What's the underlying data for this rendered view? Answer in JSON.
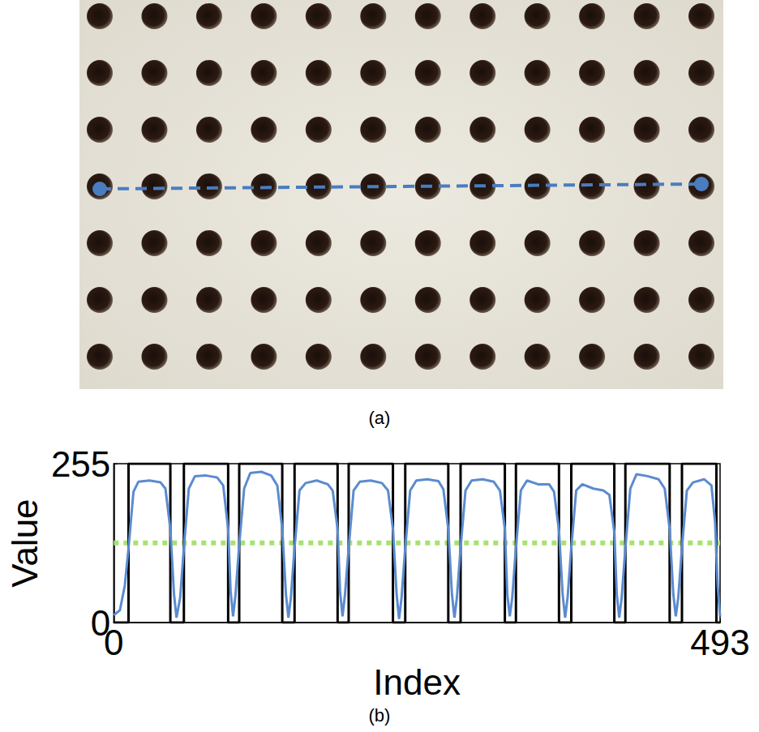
{
  "panel_a": {
    "caption": "(a)"
  },
  "chart_data": {
    "type": "line",
    "caption": "(b)",
    "x_label": "Index",
    "y_label": "Value",
    "xlim": [
      0,
      493
    ],
    "xticks": [
      0,
      493
    ],
    "ylim": [
      0,
      255
    ],
    "yticks": [
      0,
      255
    ],
    "grid": false,
    "series": [
      {
        "color": "#000000",
        "line_style": "solid",
        "x": [
          0,
          12,
          12,
          46,
          46,
          57,
          57,
          93,
          93,
          102,
          102,
          137,
          137,
          147,
          147,
          182,
          182,
          191,
          191,
          227,
          227,
          237,
          237,
          272,
          272,
          282,
          282,
          318,
          318,
          327,
          327,
          362,
          362,
          372,
          372,
          407,
          407,
          416,
          416,
          452,
          452,
          462,
          462,
          490,
          490,
          493
        ],
        "values": [
          0,
          0,
          255,
          255,
          0,
          0,
          255,
          255,
          0,
          0,
          255,
          255,
          0,
          0,
          255,
          255,
          0,
          0,
          255,
          255,
          0,
          0,
          255,
          255,
          0,
          0,
          255,
          255,
          0,
          0,
          255,
          255,
          0,
          0,
          255,
          255,
          0,
          0,
          255,
          255,
          0,
          0,
          255,
          255,
          0,
          0
        ]
      },
      {
        "color": "#5b8bd0",
        "line_style": "solid",
        "x": [
          0,
          5,
          9,
          12,
          16,
          20,
          29,
          38,
          42,
          46,
          49,
          51,
          54,
          57,
          61,
          66,
          75,
          84,
          89,
          93,
          95,
          97,
          99,
          102,
          106,
          111,
          120,
          128,
          133,
          137,
          140,
          142,
          144,
          147,
          151,
          156,
          165,
          174,
          178,
          182,
          184,
          186,
          188,
          191,
          195,
          200,
          209,
          218,
          223,
          227,
          230,
          232,
          234,
          237,
          241,
          246,
          255,
          264,
          268,
          272,
          275,
          277,
          279,
          282,
          286,
          291,
          300,
          309,
          314,
          318,
          320,
          322,
          324,
          327,
          331,
          336,
          345,
          354,
          358,
          362,
          365,
          367,
          369,
          372,
          376,
          381,
          390,
          398,
          403,
          407,
          409,
          411,
          413,
          416,
          420,
          425,
          434,
          443,
          448,
          452,
          455,
          457,
          459,
          462,
          466,
          471,
          480,
          486,
          489,
          491,
          493
        ],
        "values": [
          12,
          20,
          60,
          120,
          210,
          226,
          228,
          225,
          215,
          150,
          45,
          8,
          40,
          120,
          215,
          235,
          236,
          233,
          220,
          150,
          50,
          10,
          45,
          125,
          215,
          240,
          242,
          236,
          220,
          150,
          45,
          8,
          40,
          120,
          212,
          224,
          228,
          222,
          212,
          150,
          50,
          10,
          45,
          120,
          212,
          226,
          228,
          224,
          212,
          150,
          45,
          6,
          40,
          120,
          212,
          228,
          230,
          227,
          214,
          150,
          45,
          8,
          40,
          120,
          212,
          228,
          230,
          226,
          212,
          150,
          45,
          10,
          40,
          120,
          212,
          228,
          222,
          222,
          210,
          148,
          45,
          8,
          40,
          120,
          212,
          222,
          215,
          212,
          205,
          145,
          45,
          8,
          40,
          120,
          215,
          238,
          235,
          230,
          215,
          150,
          45,
          10,
          40,
          120,
          212,
          225,
          230,
          220,
          160,
          60,
          10
        ]
      },
      {
        "color": "#a6e36e",
        "line_style": "dotted",
        "x": [
          0,
          493
        ],
        "values": [
          128,
          128
        ]
      }
    ]
  }
}
